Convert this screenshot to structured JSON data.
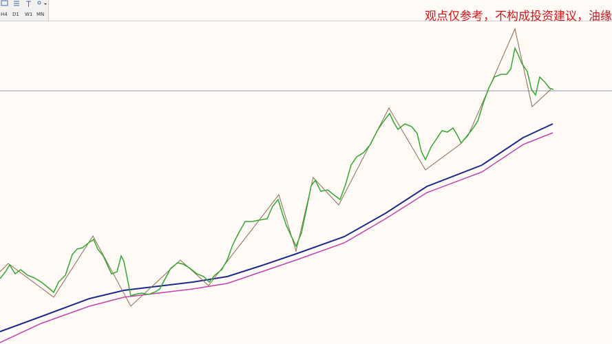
{
  "toolbar": {
    "timeframes": [
      "H4",
      "D1",
      "W1",
      "MN"
    ]
  },
  "disclaimer": "观点仅参考，不构成投资建议，油缘"
}
